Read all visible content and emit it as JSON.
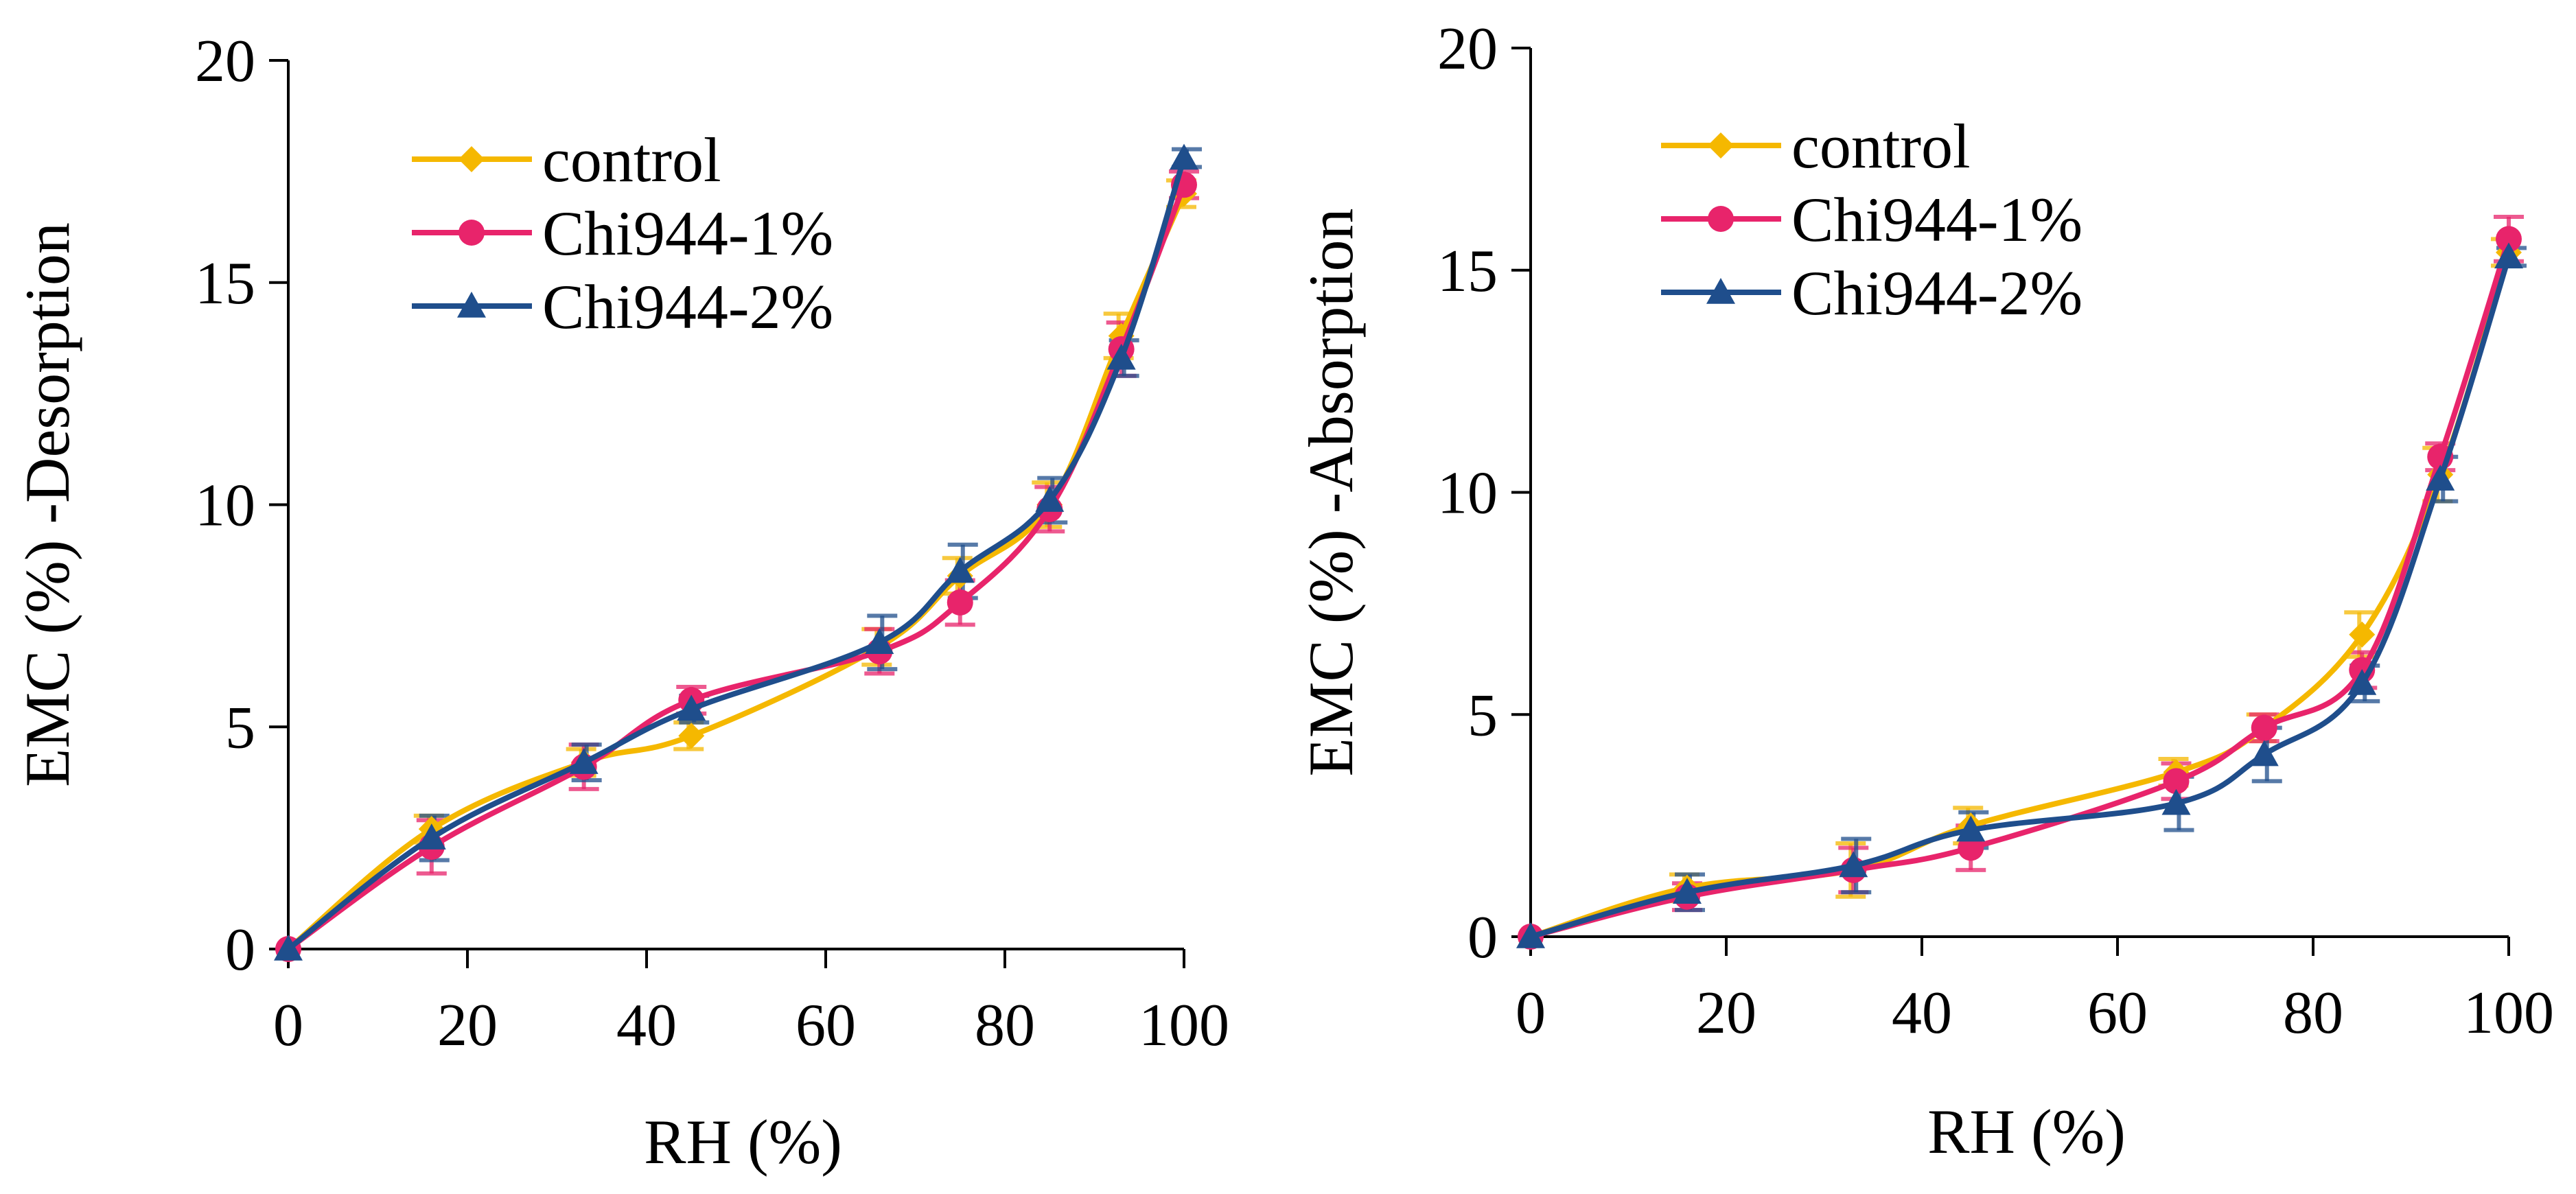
{
  "chart_data": [
    {
      "type": "line",
      "title": "",
      "xlabel": "RH (%)",
      "ylabel": "EMC (%) -Desorption",
      "xlim": [
        0,
        100
      ],
      "ylim": [
        0,
        20
      ],
      "x_ticks": [
        "0",
        "20",
        "40",
        "60",
        "80",
        "100"
      ],
      "y_ticks": [
        "0",
        "5",
        "10",
        "15",
        "20"
      ],
      "legend_position": "top-left",
      "x": [
        0,
        16,
        33,
        45,
        66,
        75,
        85,
        93,
        100
      ],
      "series": [
        {
          "name": "control",
          "color": "#F5B800",
          "marker": "diamond",
          "values": [
            0,
            2.7,
            4.2,
            4.8,
            6.8,
            8.4,
            10.0,
            13.8,
            17.0
          ],
          "errors": [
            0,
            0.3,
            0.3,
            0.3,
            0.4,
            0.4,
            0.5,
            0.5,
            0.3
          ]
        },
        {
          "name": "Chi944-1%",
          "color": "#E8246B",
          "marker": "circle",
          "values": [
            0,
            2.3,
            4.1,
            5.6,
            6.7,
            7.8,
            9.9,
            13.5,
            17.2
          ],
          "errors": [
            0,
            0.6,
            0.5,
            0.3,
            0.5,
            0.5,
            0.5,
            0.6,
            0.3
          ]
        },
        {
          "name": "Chi944-2%",
          "color": "#1F4E8C",
          "marker": "triangle",
          "values": [
            0,
            2.5,
            4.2,
            5.4,
            6.9,
            8.5,
            10.1,
            13.3,
            17.8
          ],
          "errors": [
            0,
            0.5,
            0.4,
            0.3,
            0.6,
            0.6,
            0.5,
            0.4,
            0.2
          ]
        }
      ]
    },
    {
      "type": "line",
      "title": "",
      "xlabel": "RH (%)",
      "ylabel": "EMC (%) -Absorption",
      "xlim": [
        0,
        100
      ],
      "ylim": [
        0,
        20
      ],
      "x_ticks": [
        "0",
        "20",
        "40",
        "60",
        "80",
        "100"
      ],
      "y_ticks": [
        "0",
        "5",
        "10",
        "15",
        "20"
      ],
      "legend_position": "top-left",
      "x": [
        0,
        16,
        33,
        45,
        66,
        75,
        85,
        93,
        100
      ],
      "series": [
        {
          "name": "control",
          "color": "#F5B800",
          "marker": "diamond",
          "values": [
            0,
            1.1,
            1.5,
            2.5,
            3.7,
            4.7,
            6.8,
            10.4,
            15.4
          ],
          "errors": [
            0,
            0.3,
            0.6,
            0.4,
            0.3,
            0.3,
            0.5,
            0.6,
            0.3
          ]
        },
        {
          "name": "Chi944-1%",
          "color": "#E8246B",
          "marker": "circle",
          "values": [
            0,
            0.9,
            1.5,
            2.0,
            3.5,
            4.7,
            6.0,
            10.8,
            15.7
          ],
          "errors": [
            0,
            0.3,
            0.5,
            0.5,
            0.4,
            0.3,
            0.4,
            0.3,
            0.5
          ]
        },
        {
          "name": "Chi944-2%",
          "color": "#1F4E8C",
          "marker": "triangle",
          "values": [
            0,
            1.0,
            1.6,
            2.4,
            3.0,
            4.1,
            5.7,
            10.3,
            15.3
          ],
          "errors": [
            0,
            0.4,
            0.6,
            0.4,
            0.6,
            0.6,
            0.4,
            0.5,
            0.2
          ]
        }
      ]
    }
  ]
}
